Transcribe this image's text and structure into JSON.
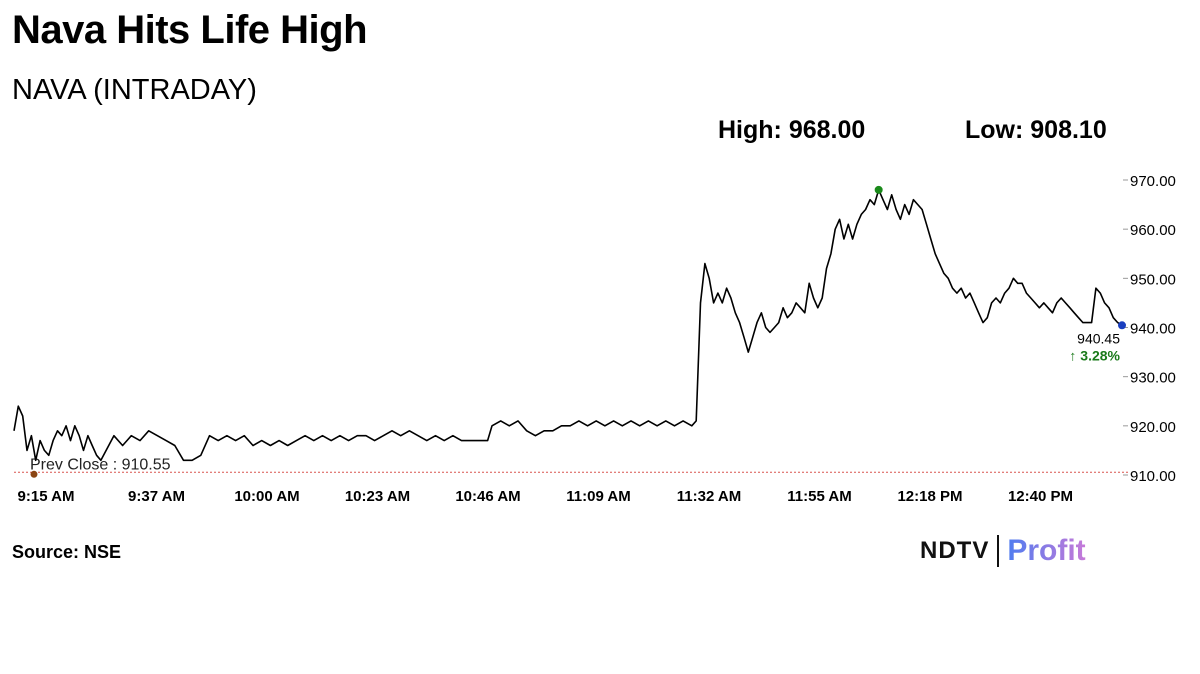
{
  "header": {
    "headline": "Nava Hits Life High",
    "subtitle": "NAVA (INTRADAY)",
    "high_label": "High: 968.00",
    "low_label": "Low: 908.10"
  },
  "footer": {
    "source": "Source: NSE",
    "logo_ndtv": "NDTV",
    "logo_profit": "Profit"
  },
  "colors": {
    "line": "#000000",
    "prev_close_line": "#d9534f",
    "high_marker": "#1a8a1a",
    "last_marker": "#1a3fbf",
    "open_marker": "#8b4513",
    "change_up": "#1a7a1a"
  },
  "chart_data": {
    "type": "line",
    "title": "NAVA (INTRADAY)",
    "x_ticks": [
      "9:15 AM",
      "9:37 AM",
      "10:00 AM",
      "10:23 AM",
      "10:46 AM",
      "11:09 AM",
      "11:32 AM",
      "11:55 AM",
      "12:18 PM",
      "12:40 PM"
    ],
    "y_ticks": [
      "970.00",
      "960.00",
      "950.00",
      "940.00",
      "930.00",
      "920.00",
      "910.00"
    ],
    "ylim": [
      910,
      970
    ],
    "x_range_min": [
      0,
      232
    ],
    "prev_close": 910.55,
    "prev_close_label": "Prev Close : 910.55",
    "last_price": 940.45,
    "last_price_label": "940.45",
    "change_label": "↑ 3.28%",
    "high_point": {
      "t": 199,
      "value": 968.0
    },
    "series": [
      {
        "values": [
          [
            0,
            919
          ],
          [
            1,
            924
          ],
          [
            2,
            922
          ],
          [
            3,
            915
          ],
          [
            4,
            918
          ],
          [
            5,
            913
          ],
          [
            6,
            917
          ],
          [
            7,
            915
          ],
          [
            8,
            914
          ],
          [
            9,
            917
          ],
          [
            10,
            919
          ],
          [
            11,
            918
          ],
          [
            12,
            920
          ],
          [
            13,
            917
          ],
          [
            14,
            920
          ],
          [
            15,
            918
          ],
          [
            16,
            915
          ],
          [
            17,
            918
          ],
          [
            18,
            916
          ],
          [
            19,
            914
          ],
          [
            20,
            913
          ],
          [
            23,
            918
          ],
          [
            25,
            916
          ],
          [
            27,
            918
          ],
          [
            29,
            917
          ],
          [
            31,
            919
          ],
          [
            33,
            918
          ],
          [
            35,
            917
          ],
          [
            37,
            916
          ],
          [
            39,
            913
          ],
          [
            41,
            913
          ],
          [
            43,
            914
          ],
          [
            45,
            918
          ],
          [
            47,
            917
          ],
          [
            49,
            918
          ],
          [
            51,
            917
          ],
          [
            53,
            918
          ],
          [
            55,
            916
          ],
          [
            57,
            917
          ],
          [
            59,
            916
          ],
          [
            61,
            917
          ],
          [
            63,
            916
          ],
          [
            65,
            917
          ],
          [
            67,
            918
          ],
          [
            69,
            917
          ],
          [
            71,
            918
          ],
          [
            73,
            917
          ],
          [
            75,
            918
          ],
          [
            77,
            917
          ],
          [
            79,
            918
          ],
          [
            81,
            918
          ],
          [
            83,
            917
          ],
          [
            85,
            918
          ],
          [
            87,
            919
          ],
          [
            89,
            918
          ],
          [
            91,
            919
          ],
          [
            93,
            918
          ],
          [
            95,
            917
          ],
          [
            97,
            918
          ],
          [
            99,
            917
          ],
          [
            101,
            918
          ],
          [
            103,
            917
          ],
          [
            105,
            917
          ],
          [
            107,
            917
          ],
          [
            109,
            917
          ],
          [
            110,
            920
          ],
          [
            112,
            921
          ],
          [
            114,
            920
          ],
          [
            116,
            921
          ],
          [
            118,
            919
          ],
          [
            120,
            918
          ],
          [
            122,
            919
          ],
          [
            124,
            919
          ],
          [
            126,
            920
          ],
          [
            128,
            920
          ],
          [
            130,
            921
          ],
          [
            132,
            920
          ],
          [
            134,
            921
          ],
          [
            136,
            920
          ],
          [
            138,
            921
          ],
          [
            140,
            920
          ],
          [
            142,
            921
          ],
          [
            144,
            920
          ],
          [
            146,
            921
          ],
          [
            148,
            920
          ],
          [
            150,
            921
          ],
          [
            152,
            920
          ],
          [
            154,
            921
          ],
          [
            156,
            920
          ],
          [
            157,
            921
          ],
          [
            158,
            945
          ],
          [
            159,
            953
          ],
          [
            160,
            950
          ],
          [
            161,
            945
          ],
          [
            162,
            947
          ],
          [
            163,
            945
          ],
          [
            164,
            948
          ],
          [
            165,
            946
          ],
          [
            166,
            943
          ],
          [
            167,
            941
          ],
          [
            168,
            938
          ],
          [
            169,
            935
          ],
          [
            170,
            938
          ],
          [
            171,
            941
          ],
          [
            172,
            943
          ],
          [
            173,
            940
          ],
          [
            174,
            939
          ],
          [
            175,
            940
          ],
          [
            176,
            941
          ],
          [
            177,
            944
          ],
          [
            178,
            942
          ],
          [
            179,
            943
          ],
          [
            180,
            945
          ],
          [
            181,
            944
          ],
          [
            182,
            943
          ],
          [
            183,
            949
          ],
          [
            184,
            946
          ],
          [
            185,
            944
          ],
          [
            186,
            946
          ],
          [
            187,
            952
          ],
          [
            188,
            955
          ],
          [
            189,
            960
          ],
          [
            190,
            962
          ],
          [
            191,
            958
          ],
          [
            192,
            961
          ],
          [
            193,
            958
          ],
          [
            194,
            961
          ],
          [
            195,
            963
          ],
          [
            196,
            964
          ],
          [
            197,
            966
          ],
          [
            198,
            965
          ],
          [
            199,
            968
          ],
          [
            200,
            966
          ],
          [
            201,
            964
          ],
          [
            202,
            967
          ],
          [
            203,
            964
          ],
          [
            204,
            962
          ],
          [
            205,
            965
          ],
          [
            206,
            963
          ],
          [
            207,
            966
          ],
          [
            208,
            965
          ],
          [
            209,
            964
          ],
          [
            210,
            961
          ],
          [
            211,
            958
          ],
          [
            212,
            955
          ],
          [
            213,
            953
          ],
          [
            214,
            951
          ],
          [
            215,
            950
          ],
          [
            216,
            948
          ],
          [
            217,
            947
          ],
          [
            218,
            948
          ],
          [
            219,
            946
          ],
          [
            220,
            947
          ],
          [
            221,
            945
          ],
          [
            222,
            943
          ],
          [
            223,
            941
          ],
          [
            224,
            942
          ],
          [
            225,
            945
          ],
          [
            226,
            946
          ],
          [
            227,
            945
          ],
          [
            228,
            947
          ],
          [
            229,
            948
          ],
          [
            230,
            950
          ],
          [
            231,
            949
          ],
          [
            232,
            949
          ],
          [
            233,
            947
          ],
          [
            234,
            946
          ],
          [
            235,
            945
          ],
          [
            236,
            944
          ],
          [
            237,
            945
          ],
          [
            238,
            944
          ],
          [
            239,
            943
          ],
          [
            240,
            945
          ],
          [
            241,
            946
          ],
          [
            242,
            945
          ],
          [
            243,
            944
          ],
          [
            244,
            943
          ],
          [
            245,
            942
          ],
          [
            246,
            941
          ],
          [
            247,
            941
          ],
          [
            248,
            941
          ],
          [
            249,
            948
          ],
          [
            250,
            947
          ],
          [
            251,
            945
          ],
          [
            252,
            944
          ],
          [
            253,
            942
          ],
          [
            254,
            941
          ],
          [
            255,
            940.45
          ]
        ]
      }
    ]
  }
}
